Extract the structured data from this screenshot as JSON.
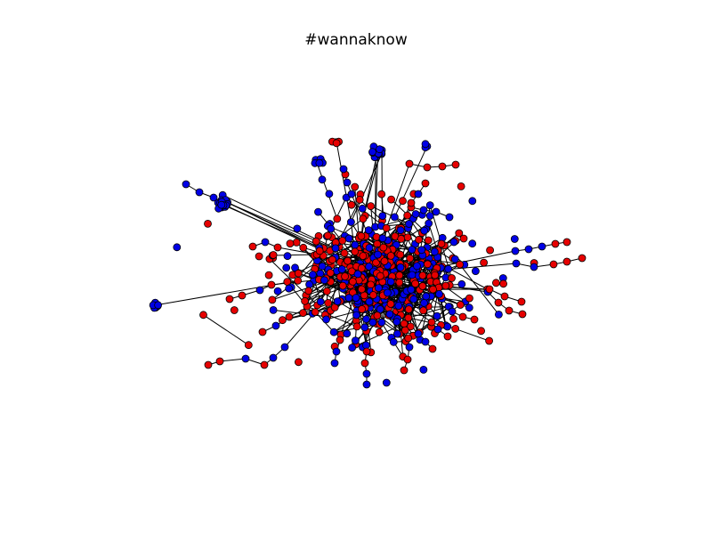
{
  "figure": {
    "title": "#wannaknow"
  },
  "graph": {
    "node_colors": {
      "group_a": "#0000e6",
      "group_b": "#e60000"
    },
    "edge_color": "#000000",
    "node_stroke": "#000000",
    "background": "#ffffff"
  }
}
